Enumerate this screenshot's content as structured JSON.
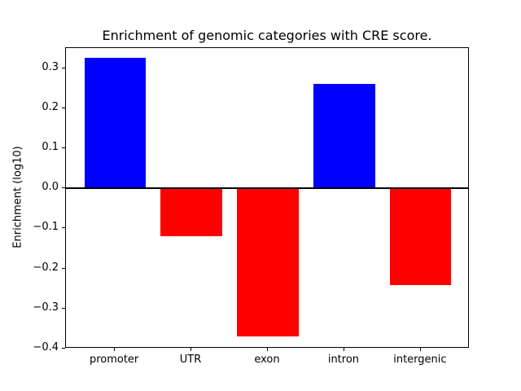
{
  "chart_data": {
    "type": "bar",
    "title": "Enrichment of genomic categories with CRE score.",
    "xlabel": "",
    "ylabel": "Enrichment (log10)",
    "categories": [
      "promoter",
      "UTR",
      "exon",
      "intron",
      "intergenic"
    ],
    "values": [
      0.325,
      -0.12,
      -0.37,
      0.26,
      -0.242
    ],
    "positive_color": "#0000ff",
    "negative_color": "#ff0000",
    "bar_colors": [
      "#0000ff",
      "#ff0000",
      "#ff0000",
      "#0000ff",
      "#ff0000"
    ],
    "ylim": [
      -0.4,
      0.35
    ],
    "yticks": [
      -0.4,
      -0.3,
      -0.2,
      -0.1,
      0.0,
      0.1,
      0.2,
      0.3
    ],
    "zero_line": true,
    "grid": false,
    "legend": "none",
    "background_color": "#ffffff",
    "axis_color": "#000000"
  }
}
